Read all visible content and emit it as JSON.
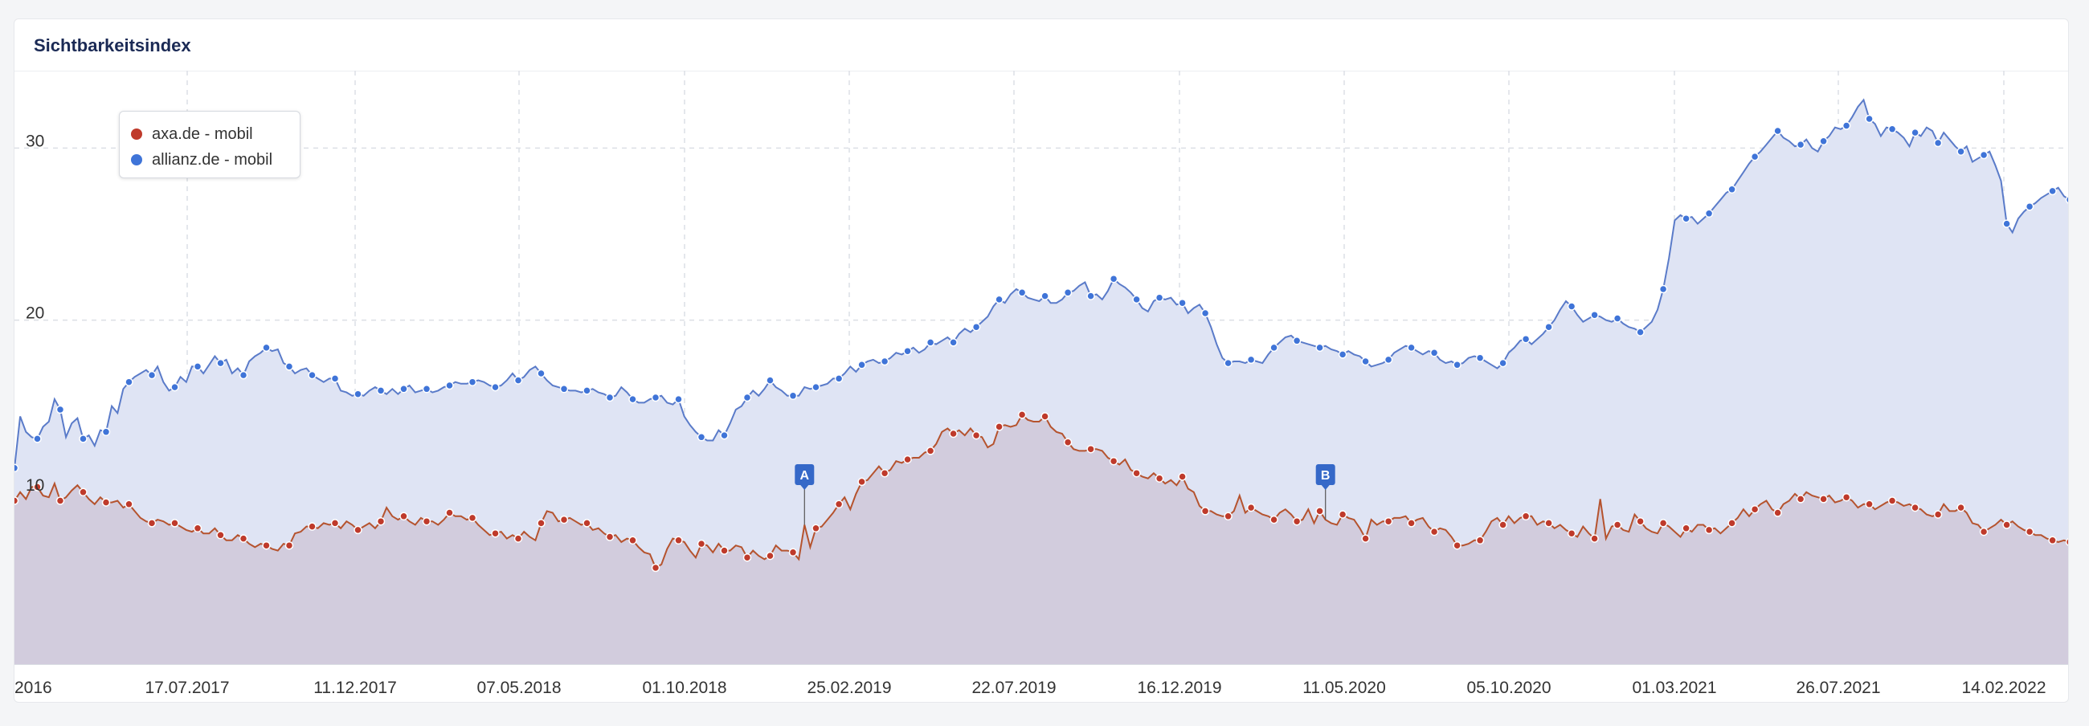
{
  "title": "Sichtbarkeitsindex",
  "colors": {
    "axa_line": "#b5532e",
    "axa_dot": "#bf3a2b",
    "allianz_line": "#5a7bc9",
    "allianz_dot": "#3f74d8",
    "allianz_fill": "#dfe4f4",
    "axa_fill": "#d0c8d8",
    "annotation": "#3568c8"
  },
  "chart_data": {
    "type": "area",
    "x_ticks": [
      "2016",
      "17.07.2017",
      "11.12.2017",
      "07.05.2018",
      "01.10.2018",
      "25.02.2019",
      "22.07.2019",
      "16.12.2019",
      "11.05.2020",
      "05.10.2020",
      "01.03.2021",
      "26.07.2021",
      "14.02.2022"
    ],
    "y_ticks": [
      10,
      20,
      30
    ],
    "ylim": [
      0,
      34.5
    ],
    "grid": true,
    "legend_position": "top-left",
    "series": [
      {
        "name": "axa.de - mobil",
        "values": [
          9.5,
          10,
          9.6,
          10.3,
          10.3,
          9.8,
          9.7,
          10.5,
          9.5,
          9.7,
          10.1,
          10.4,
          10,
          9.6,
          9.3,
          9.7,
          9.4,
          9.4,
          9.5,
          9.1,
          9.3,
          8.9,
          8.5,
          8.3,
          8.2,
          8.4,
          8.3,
          8.1,
          8.2,
          8,
          7.8,
          7.7,
          7.9,
          7.6,
          7.6,
          7.9,
          7.5,
          7.2,
          7.2,
          7.5,
          7.3,
          7,
          6.8,
          7,
          6.9,
          6.7,
          6.6,
          7,
          6.9,
          7.6,
          7.7,
          8,
          8,
          7.9,
          8.2,
          8.1,
          8.2,
          7.9,
          8.3,
          8.1,
          7.8,
          8,
          8.2,
          7.9,
          8.3,
          9.1,
          8.6,
          8.4,
          8.6,
          8.3,
          8.1,
          8.5,
          8.3,
          8.3,
          8.1,
          8.4,
          8.8,
          8.6,
          8.6,
          8.4,
          8.5,
          8.1,
          7.8,
          7.5,
          7.6,
          7.7,
          7.3,
          7.5,
          7.3,
          7.7,
          7.4,
          7.2,
          8.2,
          8.9,
          8.8,
          8.3,
          8.4,
          8.5,
          8.3,
          8.1,
          8.2,
          7.8,
          7.9,
          7.6,
          7.4,
          7.5,
          7.1,
          7.3,
          7.2,
          6.8,
          6.5,
          6.4,
          5.6,
          5.8,
          6.7,
          7.3,
          7.2,
          7.1,
          6.6,
          6.2,
          7,
          6.9,
          6.5,
          7,
          6.6,
          6.6,
          6.9,
          6.8,
          6.2,
          6.6,
          6.3,
          6.1,
          6.3,
          6.9,
          6.6,
          6.6,
          6.5,
          6.1,
          8.1,
          6.8,
          7.9,
          8,
          8.4,
          8.8,
          9.3,
          9.7,
          9,
          9.9,
          10.6,
          10.7,
          11.1,
          11.5,
          11.1,
          11.3,
          11.8,
          11.7,
          11.9,
          12,
          12,
          12.3,
          12.4,
          12.8,
          13.5,
          13.7,
          13.4,
          13.6,
          13.3,
          13.7,
          13.3,
          13.2,
          12.6,
          12.8,
          13.8,
          13.9,
          13.8,
          13.9,
          14.5,
          14.2,
          14.1,
          14.1,
          14.4,
          13.8,
          13.5,
          13.4,
          12.9,
          12.5,
          12.4,
          12.4,
          12.5,
          12.5,
          12.4,
          12,
          11.8,
          11.6,
          11.9,
          11.3,
          11.1,
          10.9,
          10.8,
          11.1,
          10.8,
          10.5,
          10.7,
          10.4,
          10.9,
          10.2,
          10,
          9.2,
          8.9,
          8.9,
          8.7,
          8.6,
          8.6,
          8.9,
          9.8,
          8.8,
          9.1,
          8.9,
          8.7,
          8.6,
          8.4,
          8.8,
          9,
          8.7,
          8.3,
          8.4,
          9,
          8.2,
          8.9,
          8.4,
          8.2,
          8.1,
          8.7,
          8.5,
          8.4,
          7.9,
          7.3,
          8.4,
          8.1,
          8.3,
          8.3,
          8.5,
          8.5,
          8.6,
          8.2,
          8.4,
          8.5,
          8,
          7.7,
          7.9,
          7.8,
          7.4,
          6.9,
          6.9,
          7,
          7.2,
          7.2,
          7.7,
          8.3,
          8.5,
          8.1,
          8.6,
          8.2,
          8.5,
          8.6,
          8.6,
          8.1,
          8.3,
          8.2,
          7.9,
          8.1,
          7.8,
          7.6,
          7.4,
          8,
          7.6,
          7.3,
          9.6,
          7.3,
          8,
          8.1,
          7.8,
          7.7,
          8.7,
          8.3,
          7.9,
          7.7,
          7.6,
          8.2,
          8,
          7.7,
          7.4,
          7.9,
          7.7,
          8.1,
          8.1,
          7.8,
          7.9,
          7.6,
          7.9,
          8.2,
          8.5,
          9,
          8.6,
          9,
          9.3,
          9.5,
          9,
          8.8,
          9.3,
          9.5,
          9.9,
          9.6,
          10,
          9.8,
          9.7,
          9.6,
          9.8,
          9.4,
          9.5,
          9.7,
          9.5,
          9.1,
          9.3,
          9.3,
          9,
          9.2,
          9.4,
          9.5,
          9.4,
          9.2,
          9.3,
          9.1,
          9,
          8.7,
          8.6,
          8.7,
          9.3,
          8.9,
          8.9,
          9.1,
          8.8,
          8.2,
          8.1,
          7.7,
          7.9,
          8.1,
          8.4,
          8.1,
          8.3,
          8,
          7.8,
          7.7,
          7.5,
          7.5,
          7.3,
          7.2,
          7.1,
          7.2,
          7.1
        ]
      },
      {
        "name": "allianz.de - mobil",
        "values": [
          11.4,
          14.4,
          13.5,
          13.2,
          13.1,
          13.8,
          14.1,
          15.4,
          14.8,
          13.2,
          14,
          14.3,
          13.1,
          13.3,
          12.7,
          13.6,
          13.5,
          15,
          14.6,
          16,
          16.4,
          16.7,
          16.9,
          17.1,
          16.8,
          17.3,
          16.4,
          15.9,
          16.1,
          16.7,
          16.4,
          17.3,
          17.3,
          16.9,
          17.4,
          17.9,
          17.5,
          17.7,
          16.9,
          17.2,
          16.8,
          17.6,
          17.9,
          18.1,
          18.4,
          18.2,
          18.3,
          17.5,
          17.3,
          16.9,
          17.1,
          17.2,
          16.8,
          16.6,
          16.4,
          16.6,
          16.6,
          15.9,
          15.8,
          15.6,
          15.7,
          15.6,
          15.9,
          16.1,
          15.9,
          15.7,
          16,
          15.7,
          16,
          16.2,
          15.8,
          15.9,
          16,
          15.8,
          15.9,
          16.1,
          16.2,
          16.4,
          16.3,
          16.3,
          16.4,
          16.5,
          16.4,
          16.2,
          16.1,
          16.2,
          16.5,
          16.9,
          16.5,
          16.7,
          17.1,
          17.3,
          16.9,
          16.5,
          16.2,
          16.1,
          16,
          15.9,
          15.9,
          15.8,
          15.9,
          16,
          15.8,
          15.7,
          15.5,
          15.6,
          16.1,
          15.8,
          15.4,
          15.2,
          15.2,
          15.4,
          15.5,
          15.6,
          15.2,
          15.1,
          15.4,
          14.4,
          13.9,
          13.5,
          13.2,
          13,
          13,
          13.6,
          13.3,
          14,
          14.8,
          15,
          15.5,
          15.9,
          15.6,
          16,
          16.5,
          16.1,
          15.9,
          15.6,
          15.6,
          15.6,
          16.1,
          16,
          16.1,
          16.2,
          16.3,
          16.6,
          16.6,
          16.9,
          17.3,
          17,
          17.4,
          17.6,
          17.7,
          17.5,
          17.6,
          17.8,
          18.1,
          18,
          18.2,
          18.4,
          18.1,
          18.3,
          18.7,
          18.6,
          18.8,
          19,
          18.7,
          19.2,
          19.5,
          19.3,
          19.6,
          19.9,
          20.2,
          20.8,
          21.2,
          21,
          21.5,
          21.8,
          21.6,
          21.3,
          21.2,
          21.1,
          21.4,
          21,
          21,
          21.2,
          21.6,
          21.7,
          22,
          22.2,
          21.4,
          21.5,
          21.2,
          21.7,
          22.4,
          22.1,
          21.9,
          21.6,
          21.2,
          20.7,
          20.5,
          21.1,
          21.3,
          21.2,
          21.3,
          20.9,
          21,
          20.4,
          20.7,
          20.9,
          20.4,
          19.6,
          18.6,
          17.8,
          17.5,
          17.6,
          17.6,
          17.5,
          17.7,
          17.6,
          17.5,
          18,
          18.4,
          18.7,
          19,
          19.1,
          18.8,
          18.7,
          18.6,
          18.5,
          18.4,
          18.5,
          18.3,
          18.2,
          18,
          18.2,
          18,
          17.9,
          17.6,
          17.3,
          17.4,
          17.5,
          17.7,
          18.1,
          18.3,
          18.5,
          18.4,
          18.2,
          18,
          18.2,
          18.1,
          17.7,
          17.5,
          17.6,
          17.4,
          17.5,
          17.8,
          17.9,
          17.8,
          17.6,
          17.4,
          17.2,
          17.5,
          18.1,
          18.4,
          18.8,
          18.9,
          18.6,
          18.9,
          19.2,
          19.6,
          20,
          20.6,
          21.1,
          20.8,
          20.3,
          19.9,
          20.1,
          20.3,
          20.2,
          20,
          19.9,
          20.1,
          19.8,
          19.6,
          19.5,
          19.3,
          19.6,
          19.9,
          20.6,
          21.8,
          23.6,
          25.8,
          26.1,
          25.9,
          26,
          25.6,
          25.9,
          26.2,
          26.6,
          27,
          27.4,
          27.6,
          28.1,
          28.6,
          29.1,
          29.5,
          29.8,
          30.2,
          30.6,
          31,
          30.6,
          30.4,
          30.1,
          30.2,
          30.5,
          30,
          29.8,
          30.4,
          30.7,
          31.2,
          31.1,
          31.3,
          31.8,
          32.4,
          32.8,
          31.7,
          31.4,
          30.7,
          31.2,
          31.1,
          30.9,
          30.6,
          30.1,
          30.9,
          30.7,
          31.2,
          31,
          30.3,
          30.9,
          30.5,
          30.1,
          29.8,
          30.1,
          29.2,
          29.4,
          29.6,
          29.8,
          29,
          28.1,
          25.6,
          25.1,
          25.9,
          26.3,
          26.6,
          26.8,
          27.1,
          27.3,
          27.5,
          27.7,
          27.2,
          27,
          27.4,
          27.3,
          27.6,
          27.2,
          26.9,
          26.3
        ]
      }
    ],
    "annotations": [
      {
        "label": "A",
        "index": 138
      },
      {
        "label": "B",
        "index": 229
      }
    ]
  }
}
